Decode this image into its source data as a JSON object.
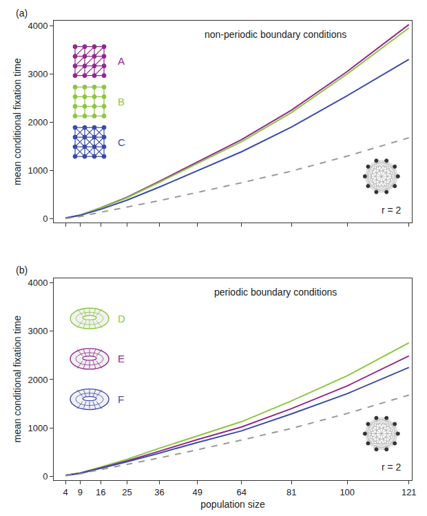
{
  "chart_data": [
    {
      "type": "line",
      "panel_label": "(a)",
      "title": "non-periodic boundary conditions",
      "annotations": [
        "r = 2"
      ],
      "y_label": "mean conditional fixation time",
      "x": [
        4,
        9,
        16,
        25,
        36,
        49,
        64,
        81,
        100,
        121
      ],
      "series": [
        {
          "name": "A",
          "color": "#92278f",
          "line_style": "solid",
          "values": [
            20,
            80,
            230,
            450,
            780,
            1180,
            1640,
            2250,
            3050,
            4020
          ]
        },
        {
          "name": "B",
          "color": "#8cc63f",
          "line_style": "solid",
          "values": [
            20,
            80,
            225,
            440,
            760,
            1150,
            1600,
            2200,
            3000,
            3950
          ]
        },
        {
          "name": "C",
          "color": "#3a4ba8",
          "line_style": "solid",
          "values": [
            20,
            75,
            200,
            390,
            660,
            1000,
            1390,
            1900,
            2550,
            3300
          ]
        },
        {
          "color": "#999999",
          "line_style": "dashed",
          "values": [
            10,
            50,
            140,
            250,
            380,
            550,
            750,
            990,
            1300,
            1680
          ]
        }
      ],
      "xlim": [
        0,
        122
      ],
      "xticks": [
        4,
        9,
        16,
        25,
        36,
        49,
        64,
        81,
        100,
        121
      ],
      "ylim": [
        -80,
        4100
      ],
      "yticks": [
        0,
        1000,
        2000,
        3000,
        4000
      ],
      "tick_labels": "y",
      "grid": false
    },
    {
      "type": "line",
      "panel_label": "(b)",
      "title": "periodic boundary conditions",
      "annotations": [
        "r = 2"
      ],
      "x_label": "population size",
      "y_label": "mean conditional fixation time",
      "x": [
        4,
        9,
        16,
        25,
        36,
        49,
        64,
        81,
        100,
        121
      ],
      "series": [
        {
          "name": "D",
          "color": "#8cc63f",
          "line_style": "solid",
          "values": [
            20,
            70,
            190,
            350,
            580,
            840,
            1130,
            1560,
            2080,
            2760
          ]
        },
        {
          "name": "E",
          "color": "#92278f",
          "line_style": "solid",
          "values": [
            20,
            65,
            175,
            320,
            520,
            760,
            1020,
            1400,
            1870,
            2490
          ]
        },
        {
          "name": "F",
          "color": "#3a4ba8",
          "line_style": "solid",
          "values": [
            18,
            60,
            165,
            300,
            480,
            700,
            940,
            1290,
            1710,
            2250
          ]
        },
        {
          "color": "#999999",
          "line_style": "dashed",
          "values": [
            10,
            50,
            140,
            250,
            380,
            550,
            750,
            990,
            1300,
            1680
          ]
        }
      ],
      "xlim": [
        0,
        122
      ],
      "xticks": [
        4,
        9,
        16,
        25,
        36,
        49,
        64,
        81,
        100,
        121
      ],
      "ylim": [
        -80,
        4100
      ],
      "yticks": [
        0,
        1000,
        2000,
        3000,
        4000
      ],
      "tick_labels": true,
      "grid": false
    }
  ]
}
